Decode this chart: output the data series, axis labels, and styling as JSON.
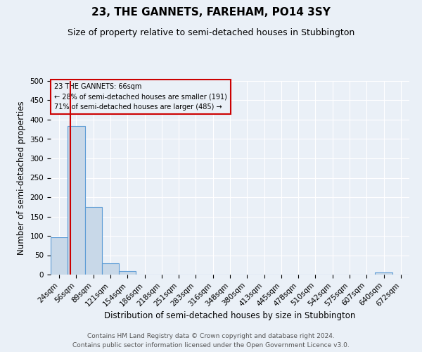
{
  "title": "23, THE GANNETS, FAREHAM, PO14 3SY",
  "subtitle": "Size of property relative to semi-detached houses in Stubbington",
  "xlabel": "Distribution of semi-detached houses by size in Stubbington",
  "ylabel": "Number of semi-detached properties",
  "footer_line1": "Contains HM Land Registry data © Crown copyright and database right 2024.",
  "footer_line2": "Contains public sector information licensed under the Open Government Licence v3.0.",
  "categories": [
    "24sqm",
    "56sqm",
    "89sqm",
    "121sqm",
    "154sqm",
    "186sqm",
    "218sqm",
    "251sqm",
    "283sqm",
    "316sqm",
    "348sqm",
    "380sqm",
    "413sqm",
    "445sqm",
    "478sqm",
    "510sqm",
    "542sqm",
    "575sqm",
    "607sqm",
    "640sqm",
    "672sqm"
  ],
  "values": [
    96,
    383,
    175,
    30,
    10,
    0,
    0,
    0,
    0,
    0,
    0,
    0,
    0,
    0,
    0,
    0,
    0,
    0,
    0,
    5,
    0
  ],
  "bar_color": "#c8d8e8",
  "bar_edge_color": "#5b9bd5",
  "bar_edge_width": 0.8,
  "property_bin_index": 1,
  "red_line_color": "#cc0000",
  "annotation_text_line1": "23 THE GANNETS: 66sqm",
  "annotation_text_line2": "← 28% of semi-detached houses are smaller (191)",
  "annotation_text_line3": "71% of semi-detached houses are larger (485) →",
  "annotation_box_edgecolor": "#cc0000",
  "ylim": [
    0,
    500
  ],
  "yticks": [
    0,
    50,
    100,
    150,
    200,
    250,
    300,
    350,
    400,
    450,
    500
  ],
  "background_color": "#eaf0f7",
  "grid_color": "#ffffff",
  "title_fontsize": 11,
  "subtitle_fontsize": 9,
  "axis_label_fontsize": 8.5,
  "tick_fontsize": 7.5,
  "footer_fontsize": 6.5
}
